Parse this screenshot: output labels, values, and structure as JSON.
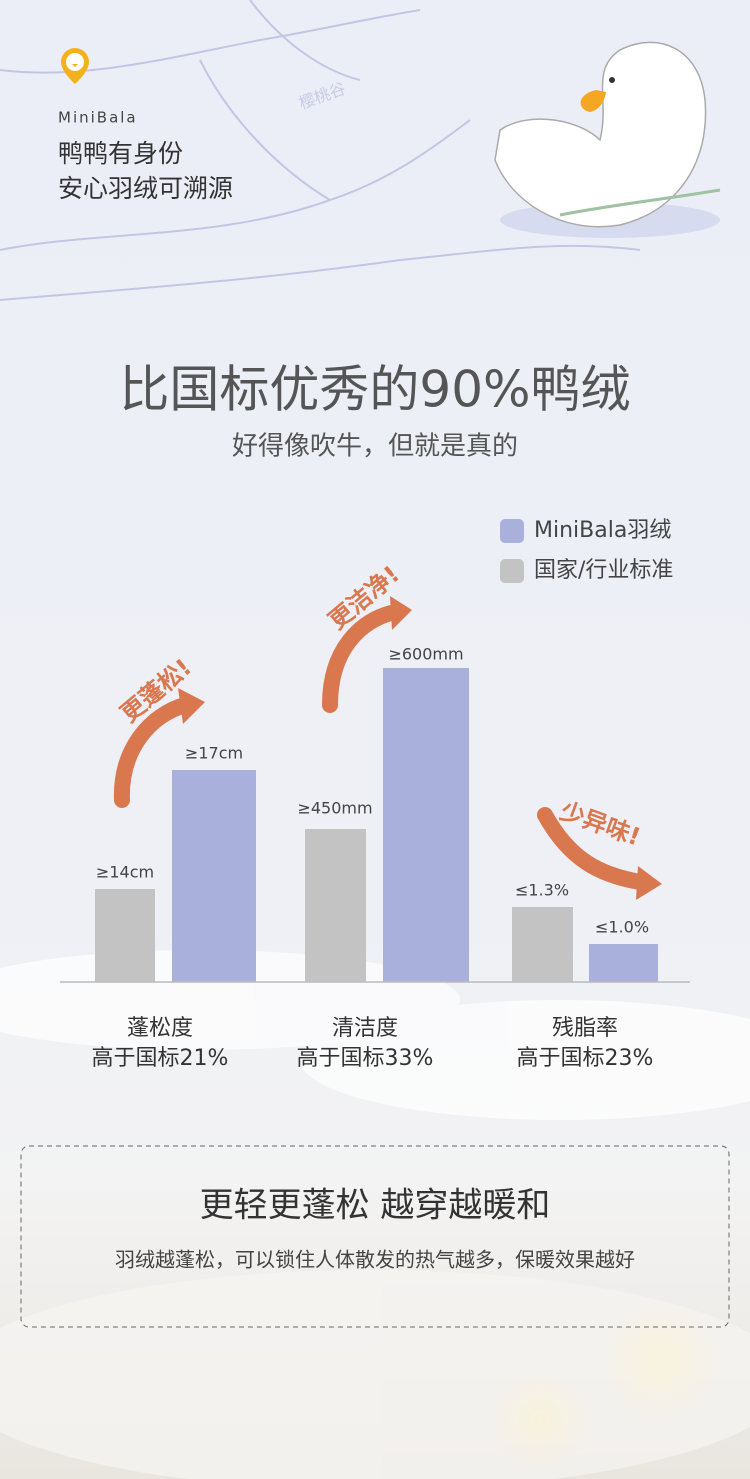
{
  "header": {
    "brand": "MiniBala",
    "lines": [
      "鸭鸭有身份",
      "安心羽绒可溯源"
    ],
    "watermark": "樱桃谷"
  },
  "title": "比国标优秀的90%鸭绒",
  "subtitle": "好得像吹牛，但就是真的",
  "legend": [
    "MiniBala羽绒",
    "国家/行业标准"
  ],
  "groups": [
    {
      "standard": "≥14cm",
      "minibala": "≥17cm",
      "name": "蓬松度",
      "note": "高于国标21%",
      "callout": "更蓬松!"
    },
    {
      "standard": "≥450mm",
      "minibala": "≥600mm",
      "name": "清洁度",
      "note": "高于国标33%",
      "callout": "更洁净!"
    },
    {
      "standard": "≤1.3%",
      "minibala": "≤1.0%",
      "name": "残脂率",
      "note": "高于国标23%",
      "callout": "少异味!"
    }
  ],
  "footer": {
    "title": "更轻更蓬松 越穿越暖和",
    "text": "羽绒越蓬松，可以锁住人体散发的热气越多，保暖效果越好"
  }
}
